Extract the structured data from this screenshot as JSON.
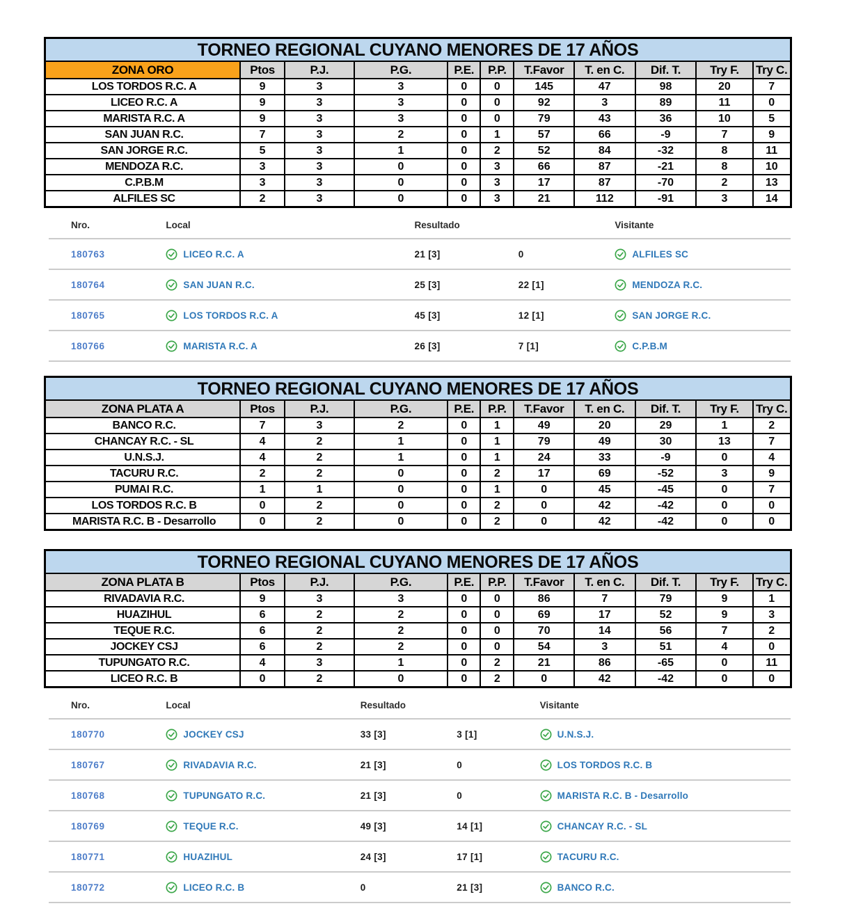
{
  "colors": {
    "title_bg": "#BDD7EE",
    "zona_oro_bg": "#F9A21B",
    "header_gray": "#D6D6D6",
    "border": "#000000",
    "nro_link_blue": "#4E7EC9",
    "team_link_blue": "#2F78B8",
    "check_green": "#3AA648",
    "separator_gray": "#CBCBCB"
  },
  "standings_columns": [
    "Ptos",
    "P.J.",
    "P.G.",
    "P.E.",
    "P.P.",
    "T.Favor",
    "T. en C.",
    "Dif. T.",
    "Try F.",
    "Try C."
  ],
  "tables": [
    {
      "title": "TORNEO REGIONAL CUYANO MENORES DE 17 AÑOS",
      "zone": "ZONA ORO",
      "zone_bg": "#F9A21B",
      "rows": [
        {
          "team": "LOS TORDOS R.C. A",
          "values": [
            "9",
            "3",
            "3",
            "0",
            "0",
            "145",
            "47",
            "98",
            "20",
            "7"
          ]
        },
        {
          "team": "LICEO R.C. A",
          "values": [
            "9",
            "3",
            "3",
            "0",
            "0",
            "92",
            "3",
            "89",
            "11",
            "0"
          ]
        },
        {
          "team": "MARISTA R.C. A",
          "values": [
            "9",
            "3",
            "3",
            "0",
            "0",
            "79",
            "43",
            "36",
            "10",
            "5"
          ]
        },
        {
          "team": "SAN JUAN R.C.",
          "values": [
            "7",
            "3",
            "2",
            "0",
            "1",
            "57",
            "66",
            "-9",
            "7",
            "9"
          ]
        },
        {
          "team": "SAN JORGE R.C.",
          "values": [
            "5",
            "3",
            "1",
            "0",
            "2",
            "52",
            "84",
            "-32",
            "8",
            "11"
          ]
        },
        {
          "team": "MENDOZA R.C.",
          "values": [
            "3",
            "3",
            "0",
            "0",
            "3",
            "66",
            "87",
            "-21",
            "8",
            "10"
          ]
        },
        {
          "team": "C.P.B.M",
          "values": [
            "3",
            "3",
            "0",
            "0",
            "3",
            "17",
            "87",
            "-70",
            "2",
            "13"
          ]
        },
        {
          "team": "ALFILES SC",
          "values": [
            "2",
            "3",
            "0",
            "0",
            "3",
            "21",
            "112",
            "-91",
            "3",
            "14"
          ]
        }
      ]
    },
    {
      "title": "TORNEO REGIONAL CUYANO MENORES DE 17 AÑOS",
      "zone": "ZONA PLATA A",
      "zone_bg": "#D6D6D6",
      "rows": [
        {
          "team": "BANCO R.C.",
          "values": [
            "7",
            "3",
            "2",
            "0",
            "1",
            "49",
            "20",
            "29",
            "1",
            "2"
          ]
        },
        {
          "team": "CHANCAY R.C. - SL",
          "values": [
            "4",
            "2",
            "1",
            "0",
            "1",
            "79",
            "49",
            "30",
            "13",
            "7"
          ]
        },
        {
          "team": "U.N.S.J.",
          "values": [
            "4",
            "2",
            "1",
            "0",
            "1",
            "24",
            "33",
            "-9",
            "0",
            "4"
          ]
        },
        {
          "team": "TACURU R.C.",
          "values": [
            "2",
            "2",
            "0",
            "0",
            "2",
            "17",
            "69",
            "-52",
            "3",
            "9"
          ]
        },
        {
          "team": "PUMAI R.C.",
          "values": [
            "1",
            "1",
            "0",
            "0",
            "1",
            "0",
            "45",
            "-45",
            "0",
            "7"
          ]
        },
        {
          "team": "LOS TORDOS R.C. B",
          "values": [
            "0",
            "2",
            "0",
            "0",
            "2",
            "0",
            "42",
            "-42",
            "0",
            "0"
          ]
        },
        {
          "team": "MARISTA R.C. B - Desarrollo",
          "values": [
            "0",
            "2",
            "0",
            "0",
            "2",
            "0",
            "42",
            "-42",
            "0",
            "0"
          ]
        }
      ]
    },
    {
      "title": "TORNEO REGIONAL CUYANO MENORES DE 17 AÑOS",
      "zone": "ZONA PLATA B",
      "zone_bg": "#D6D6D6",
      "rows": [
        {
          "team": "RIVADAVIA R.C.",
          "values": [
            "9",
            "3",
            "3",
            "0",
            "0",
            "86",
            "7",
            "79",
            "9",
            "1"
          ]
        },
        {
          "team": "HUAZIHUL",
          "values": [
            "6",
            "2",
            "2",
            "0",
            "0",
            "69",
            "17",
            "52",
            "9",
            "3"
          ]
        },
        {
          "team": "TEQUE R.C.",
          "values": [
            "6",
            "2",
            "2",
            "0",
            "0",
            "70",
            "14",
            "56",
            "7",
            "2"
          ]
        },
        {
          "team": "JOCKEY CSJ",
          "values": [
            "6",
            "2",
            "2",
            "0",
            "0",
            "54",
            "3",
            "51",
            "4",
            "0"
          ]
        },
        {
          "team": "TUPUNGATO R.C.",
          "values": [
            "4",
            "3",
            "1",
            "0",
            "2",
            "21",
            "86",
            "-65",
            "0",
            "11"
          ]
        },
        {
          "team": "LICEO R.C. B",
          "values": [
            "0",
            "2",
            "0",
            "0",
            "2",
            "0",
            "42",
            "-42",
            "0",
            "0"
          ]
        }
      ]
    }
  ],
  "results_header": {
    "nro": "Nro.",
    "local": "Local",
    "resultado": "Resultado",
    "visitante": "Visitante"
  },
  "match_sections": [
    {
      "matches": [
        {
          "nro": "180763",
          "local": "LICEO R.C. A",
          "score_local": "21 [3]",
          "score_visit": "0",
          "visitante": "ALFILES SC"
        },
        {
          "nro": "180764",
          "local": "SAN JUAN R.C.",
          "score_local": "25 [3]",
          "score_visit": "22 [1]",
          "visitante": "MENDOZA R.C."
        },
        {
          "nro": "180765",
          "local": "LOS TORDOS R.C. A",
          "score_local": "45 [3]",
          "score_visit": "12 [1]",
          "visitante": "SAN JORGE R.C."
        },
        {
          "nro": "180766",
          "local": "MARISTA R.C. A",
          "score_local": "26 [3]",
          "score_visit": "7 [1]",
          "visitante": "C.P.B.M"
        }
      ]
    },
    {
      "matches": [
        {
          "nro": "180770",
          "local": "JOCKEY CSJ",
          "score_local": "33 [3]",
          "score_visit": "3 [1]",
          "visitante": "U.N.S.J."
        },
        {
          "nro": "180767",
          "local": "RIVADAVIA R.C.",
          "score_local": "21 [3]",
          "score_visit": "0",
          "visitante": "LOS TORDOS R.C. B"
        },
        {
          "nro": "180768",
          "local": "TUPUNGATO R.C.",
          "score_local": "21 [3]",
          "score_visit": "0",
          "visitante": "MARISTA R.C. B - Desarrollo"
        },
        {
          "nro": "180769",
          "local": "TEQUE R.C.",
          "score_local": "49 [3]",
          "score_visit": "14 [1]",
          "visitante": "CHANCAY R.C. - SL"
        },
        {
          "nro": "180771",
          "local": "HUAZIHUL",
          "score_local": "24 [3]",
          "score_visit": "17 [1]",
          "visitante": "TACURU R.C."
        },
        {
          "nro": "180772",
          "local": "LICEO R.C. B",
          "score_local": "0",
          "score_visit": "21 [3]",
          "visitante": "BANCO R.C."
        }
      ]
    }
  ]
}
